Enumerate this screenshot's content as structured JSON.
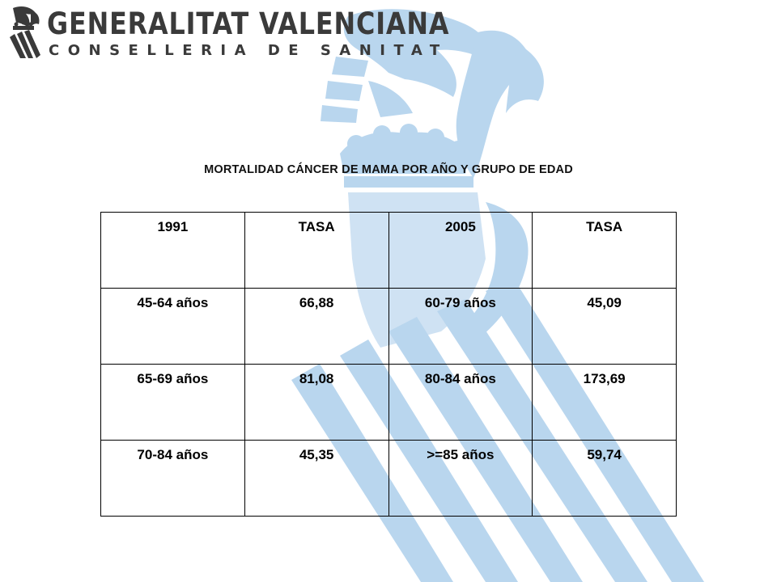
{
  "header": {
    "org_name": "GENERALITAT VALENCIANA",
    "department": "CONSELLERIA DE SANITAT"
  },
  "table": {
    "title": "MORTALIDAD CÁNCER DE MAMA POR AÑO Y GRUPO DE EDAD",
    "header_row": [
      "1991",
      "TASA",
      "2005",
      "TASA"
    ],
    "rows": [
      [
        "45-64 años",
        "66,88",
        "60-79 años",
        "45,09"
      ],
      [
        "65-69 años",
        "81,08",
        "80-84 años",
        "173,69"
      ],
      [
        "70-84 años",
        "45,35",
        ">=85 años",
        "59,74"
      ]
    ]
  },
  "colors": {
    "watermark": "#b9d6ee",
    "logo_text": "#3a3a3a",
    "table_border": "#000000"
  },
  "icons": {
    "logo": "generalitat-valenciana-emblem-icon",
    "watermark": "rat-penat-crest-watermark-icon"
  }
}
